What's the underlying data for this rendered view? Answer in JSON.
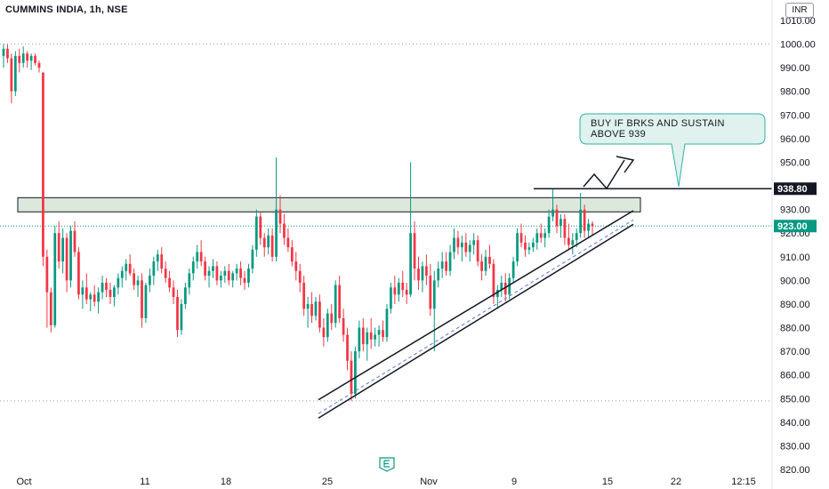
{
  "header": {
    "title": "CUMMINS INDIA, 1h, NSE",
    "currency": "INR"
  },
  "annotation": {
    "text_line1": "BUY IF BRKS AND SUSTAIN",
    "text_line2": "ABOVE 939"
  },
  "price_labels": {
    "resistance": "938.80",
    "last": "923.00"
  },
  "colors": {
    "up": "#089981",
    "down": "#f23645",
    "zone_fill": "#dde8dc",
    "callout_fill": "#dff2ee",
    "callout_border": "#2fb2a6",
    "last_price": "#089981"
  },
  "chart_data": {
    "type": "candlestick",
    "title": "CUMMINS INDIA, 1h, NSE",
    "ylim": [
      820,
      1010
    ],
    "y_ticks": [
      "1010.00",
      "1000.00",
      "990.00",
      "980.00",
      "970.00",
      "960.00",
      "950.00",
      "940.00",
      "930.00",
      "920.00",
      "910.00",
      "900.00",
      "890.00",
      "880.00",
      "870.00",
      "860.00",
      "850.00",
      "840.00",
      "830.00",
      "820.00"
    ],
    "x_ticks": [
      "Oct",
      "11",
      "18",
      "25",
      "Nov",
      "9",
      "15",
      "22",
      "12:15"
    ],
    "dotted_levels": [
      1000,
      849
    ],
    "resistance_zone": [
      929,
      935
    ],
    "resistance_level": 938.8,
    "last_price": 923.0,
    "channel": {
      "from": "Oct 25",
      "to": "Nov 16",
      "start": [
        847,
        851
      ],
      "end": [
        929,
        931
      ]
    },
    "series": [
      {
        "name": "",
        "ohlc": [
          [
            995,
            1000,
            990,
            998
          ],
          [
            998,
            1000,
            992,
            994
          ],
          [
            994,
            996,
            975,
            980
          ],
          [
            980,
            997,
            978,
            995
          ],
          [
            995,
            998,
            988,
            992
          ],
          [
            992,
            999,
            990,
            996
          ],
          [
            996,
            997,
            990,
            993
          ],
          [
            993,
            996,
            989,
            995
          ],
          [
            995,
            996,
            991,
            992
          ],
          [
            992,
            993,
            988,
            990
          ],
          [
            988,
            988,
            906,
            910
          ],
          [
            910,
            913,
            880,
            895
          ],
          [
            895,
            897,
            878,
            881
          ],
          [
            881,
            923,
            880,
            920
          ],
          [
            920,
            925,
            905,
            908
          ],
          [
            908,
            922,
            903,
            918
          ],
          [
            918,
            920,
            895,
            900
          ],
          [
            900,
            923,
            897,
            921
          ],
          [
            921,
            925,
            910,
            912
          ],
          [
            912,
            914,
            892,
            894
          ],
          [
            894,
            900,
            888,
            897
          ],
          [
            897,
            903,
            890,
            892
          ],
          [
            892,
            895,
            887,
            894
          ],
          [
            894,
            898,
            889,
            891
          ],
          [
            891,
            897,
            886,
            895
          ],
          [
            895,
            902,
            892,
            899
          ],
          [
            899,
            901,
            893,
            896
          ],
          [
            896,
            899,
            890,
            893
          ],
          [
            893,
            898,
            889,
            897
          ],
          [
            897,
            903,
            894,
            901
          ],
          [
            901,
            906,
            897,
            904
          ],
          [
            904,
            909,
            900,
            907
          ],
          [
            907,
            911,
            902,
            903
          ],
          [
            903,
            905,
            896,
            898
          ],
          [
            898,
            902,
            893,
            900
          ],
          [
            900,
            903,
            880,
            884
          ],
          [
            884,
            899,
            882,
            898
          ],
          [
            898,
            905,
            895,
            902
          ],
          [
            902,
            910,
            898,
            908
          ],
          [
            908,
            913,
            904,
            911
          ],
          [
            911,
            914,
            903,
            905
          ],
          [
            905,
            908,
            899,
            901
          ],
          [
            901,
            904,
            895,
            897
          ],
          [
            897,
            900,
            890,
            893
          ],
          [
            893,
            896,
            876,
            879
          ],
          [
            879,
            892,
            877,
            890
          ],
          [
            890,
            899,
            888,
            897
          ],
          [
            897,
            905,
            894,
            903
          ],
          [
            903,
            910,
            900,
            908
          ],
          [
            908,
            915,
            905,
            912
          ],
          [
            912,
            917,
            906,
            908
          ],
          [
            908,
            910,
            900,
            902
          ],
          [
            902,
            906,
            897,
            904
          ],
          [
            904,
            909,
            901,
            906
          ],
          [
            906,
            908,
            898,
            900
          ],
          [
            900,
            904,
            897,
            902
          ],
          [
            902,
            906,
            899,
            904
          ],
          [
            904,
            907,
            898,
            900
          ],
          [
            900,
            904,
            897,
            903
          ],
          [
            903,
            907,
            900,
            905
          ],
          [
            905,
            908,
            898,
            901
          ],
          [
            901,
            904,
            896,
            899
          ],
          [
            899,
            907,
            897,
            905
          ],
          [
            905,
            915,
            903,
            913
          ],
          [
            913,
            930,
            910,
            927
          ],
          [
            927,
            929,
            915,
            918
          ],
          [
            918,
            920,
            910,
            914
          ],
          [
            914,
            922,
            911,
            919
          ],
          [
            919,
            922,
            908,
            910
          ],
          [
            910,
            952,
            908,
            930
          ],
          [
            930,
            936,
            920,
            924
          ],
          [
            924,
            928,
            915,
            918
          ],
          [
            918,
            922,
            912,
            914
          ],
          [
            914,
            917,
            906,
            908
          ],
          [
            908,
            912,
            900,
            904
          ],
          [
            904,
            907,
            895,
            899
          ],
          [
            899,
            902,
            885,
            888
          ],
          [
            888,
            893,
            880,
            890
          ],
          [
            890,
            895,
            882,
            885
          ],
          [
            885,
            893,
            883,
            891
          ],
          [
            891,
            894,
            878,
            880
          ],
          [
            880,
            884,
            872,
            876
          ],
          [
            876,
            888,
            874,
            886
          ],
          [
            886,
            890,
            879,
            882
          ],
          [
            882,
            900,
            880,
            898
          ],
          [
            898,
            902,
            882,
            884
          ],
          [
            884,
            888,
            874,
            877
          ],
          [
            877,
            880,
            862,
            866
          ],
          [
            866,
            870,
            849,
            852
          ],
          [
            852,
            872,
            850,
            870
          ],
          [
            870,
            883,
            867,
            880
          ],
          [
            880,
            884,
            870,
            873
          ],
          [
            873,
            880,
            866,
            878
          ],
          [
            878,
            884,
            871,
            875
          ],
          [
            875,
            880,
            872,
            877
          ],
          [
            877,
            881,
            872,
            879
          ],
          [
            879,
            883,
            874,
            876
          ],
          [
            876,
            890,
            874,
            888
          ],
          [
            888,
            899,
            886,
            897
          ],
          [
            897,
            902,
            890,
            894
          ],
          [
            894,
            901,
            891,
            899
          ],
          [
            899,
            904,
            893,
            896
          ],
          [
            896,
            899,
            890,
            894
          ],
          [
            894,
            950,
            893,
            920
          ],
          [
            920,
            925,
            900,
            905
          ],
          [
            905,
            910,
            896,
            900
          ],
          [
            900,
            908,
            895,
            906
          ],
          [
            906,
            911,
            898,
            902
          ],
          [
            902,
            907,
            885,
            888
          ],
          [
            888,
            904,
            870,
            900
          ],
          [
            900,
            908,
            897,
            905
          ],
          [
            905,
            912,
            901,
            908
          ],
          [
            908,
            912,
            902,
            904
          ],
          [
            904,
            915,
            902,
            912
          ],
          [
            912,
            922,
            909,
            918
          ],
          [
            918,
            921,
            911,
            914
          ],
          [
            914,
            919,
            908,
            916
          ],
          [
            916,
            920,
            910,
            912
          ],
          [
            912,
            917,
            908,
            915
          ],
          [
            915,
            920,
            911,
            917
          ],
          [
            917,
            919,
            906,
            908
          ],
          [
            908,
            911,
            900,
            904
          ],
          [
            904,
            913,
            902,
            910
          ],
          [
            910,
            915,
            905,
            907
          ],
          [
            907,
            909,
            890,
            893
          ],
          [
            893,
            898,
            888,
            896
          ],
          [
            896,
            902,
            893,
            899
          ],
          [
            899,
            903,
            891,
            894
          ],
          [
            894,
            903,
            892,
            901
          ],
          [
            901,
            910,
            899,
            908
          ],
          [
            908,
            922,
            906,
            920
          ],
          [
            920,
            924,
            914,
            916
          ],
          [
            916,
            919,
            910,
            913
          ],
          [
            913,
            916,
            911,
            914
          ],
          [
            914,
            918,
            912,
            916
          ],
          [
            916,
            922,
            913,
            920
          ],
          [
            920,
            924,
            916,
            918
          ],
          [
            918,
            922,
            914,
            920
          ],
          [
            920,
            930,
            918,
            927
          ],
          [
            927,
            939,
            925,
            930
          ],
          [
            930,
            932,
            920,
            923
          ],
          [
            923,
            928,
            918,
            926
          ],
          [
            926,
            928,
            915,
            918
          ],
          [
            918,
            924,
            913,
            915
          ],
          [
            915,
            920,
            911,
            917
          ],
          [
            917,
            922,
            914,
            920
          ],
          [
            920,
            937,
            918,
            930
          ],
          [
            930,
            932,
            918,
            921
          ],
          [
            921,
            926,
            918,
            924
          ],
          [
            924,
            925,
            919,
            923
          ]
        ]
      }
    ]
  }
}
